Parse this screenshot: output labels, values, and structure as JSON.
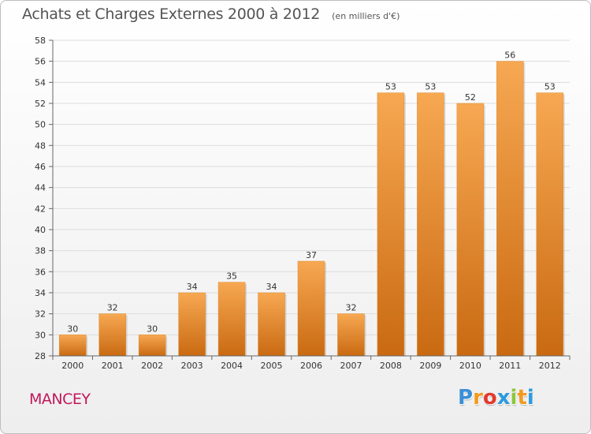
{
  "title": "Achats et Charges Externes 2000 à 2012",
  "subtitle": "(en milliers d'€)",
  "location": "MANCEY",
  "logo": {
    "letters": [
      "P",
      "r",
      "o",
      "x",
      "i",
      "t",
      "i"
    ],
    "colors": [
      "#3a8fd8",
      "#f29a1f",
      "#e23b2e",
      "#2b9be0",
      "#8cc63f",
      "#f29a1f",
      "#2b9be0"
    ]
  },
  "colors": {
    "bar_top": "#f7a852",
    "bar_bottom": "#c96a12",
    "grid": "#dcdcdc",
    "axis": "#666666"
  },
  "chart_data": {
    "type": "bar",
    "categories": [
      "2000",
      "2001",
      "2002",
      "2003",
      "2004",
      "2005",
      "2006",
      "2007",
      "2008",
      "2009",
      "2010",
      "2011",
      "2012"
    ],
    "values": [
      30,
      32,
      30,
      34,
      35,
      34,
      37,
      32,
      53,
      53,
      52,
      56,
      53
    ],
    "data_labels": [
      "30",
      "32",
      "30",
      "34",
      "35",
      "34",
      "37",
      "32",
      "53",
      "53",
      "52",
      "56",
      "53"
    ],
    "ylim": [
      28,
      58
    ],
    "yticks": [
      28,
      30,
      32,
      34,
      36,
      38,
      40,
      42,
      44,
      46,
      48,
      50,
      52,
      54,
      56,
      58
    ],
    "ytick_labels": [
      "28",
      "30",
      "32",
      "34",
      "36",
      "38",
      "40",
      "42",
      "44",
      "46",
      "48",
      "50",
      "52",
      "54",
      "56",
      "58"
    ],
    "grid": true,
    "legend": "none"
  }
}
